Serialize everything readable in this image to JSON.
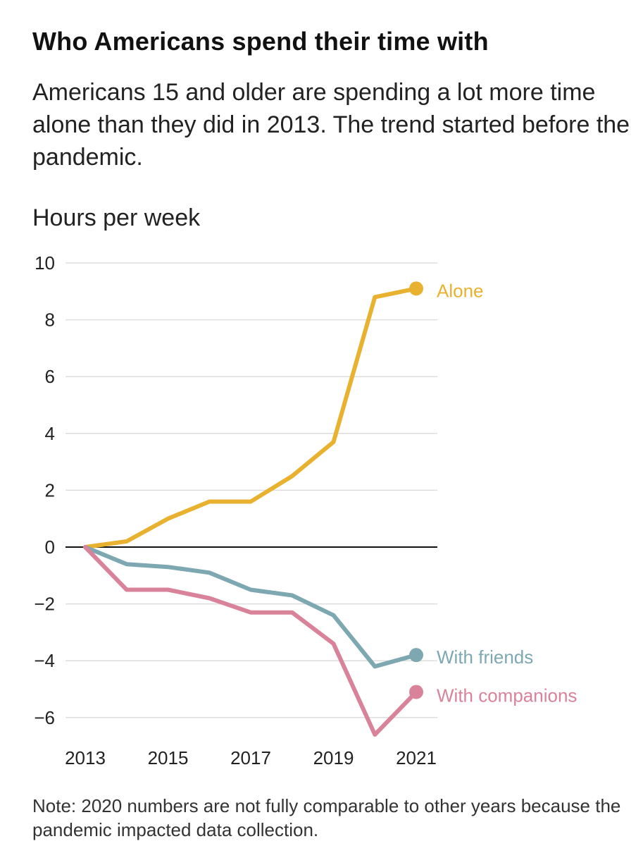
{
  "title": "Who Americans spend their time with",
  "subtitle": "Americans 15 and older are spending a lot more time alone than they did in 2013. The trend started before the pandemic.",
  "note": "Note: 2020 numbers are not fully comparable to other years because the pandemic impacted data collection.",
  "colors": {
    "alone": "#e8b230",
    "friends": "#7ea8b1",
    "companions": "#d9839b",
    "grid": "#dddddd",
    "zero": "#111111"
  },
  "chart_data": {
    "type": "line",
    "ylabel": "Hours per week",
    "xlabel": "",
    "x": [
      2013,
      2014,
      2015,
      2016,
      2017,
      2018,
      2019,
      2020,
      2021
    ],
    "xlim": [
      2013,
      2021
    ],
    "ylim": [
      -6.6,
      10
    ],
    "yticks": [
      10,
      8,
      6,
      4,
      2,
      0,
      -2,
      -4,
      -6
    ],
    "ytick_labels": [
      "10",
      "8",
      "6",
      "4",
      "2",
      "0",
      "−2",
      "−4",
      "−6"
    ],
    "xticks": [
      2013,
      2015,
      2017,
      2019,
      2021
    ],
    "xtick_labels": [
      "2013",
      "2015",
      "2017",
      "2019",
      "2021"
    ],
    "grid": true,
    "legend": "direct labels at line ends",
    "series": [
      {
        "name": "Alone",
        "color": "#e8b230",
        "values": [
          0,
          0.2,
          1.0,
          1.6,
          1.6,
          2.5,
          3.7,
          8.8,
          9.1
        ]
      },
      {
        "name": "With friends",
        "color": "#7ea8b1",
        "values": [
          0,
          -0.6,
          -0.7,
          -0.9,
          -1.5,
          -1.7,
          -2.4,
          -4.2,
          -3.8
        ]
      },
      {
        "name": "With companions",
        "color": "#d9839b",
        "values": [
          0,
          -1.5,
          -1.5,
          -1.8,
          -2.3,
          -2.3,
          -3.4,
          -6.6,
          -5.1
        ]
      }
    ]
  }
}
